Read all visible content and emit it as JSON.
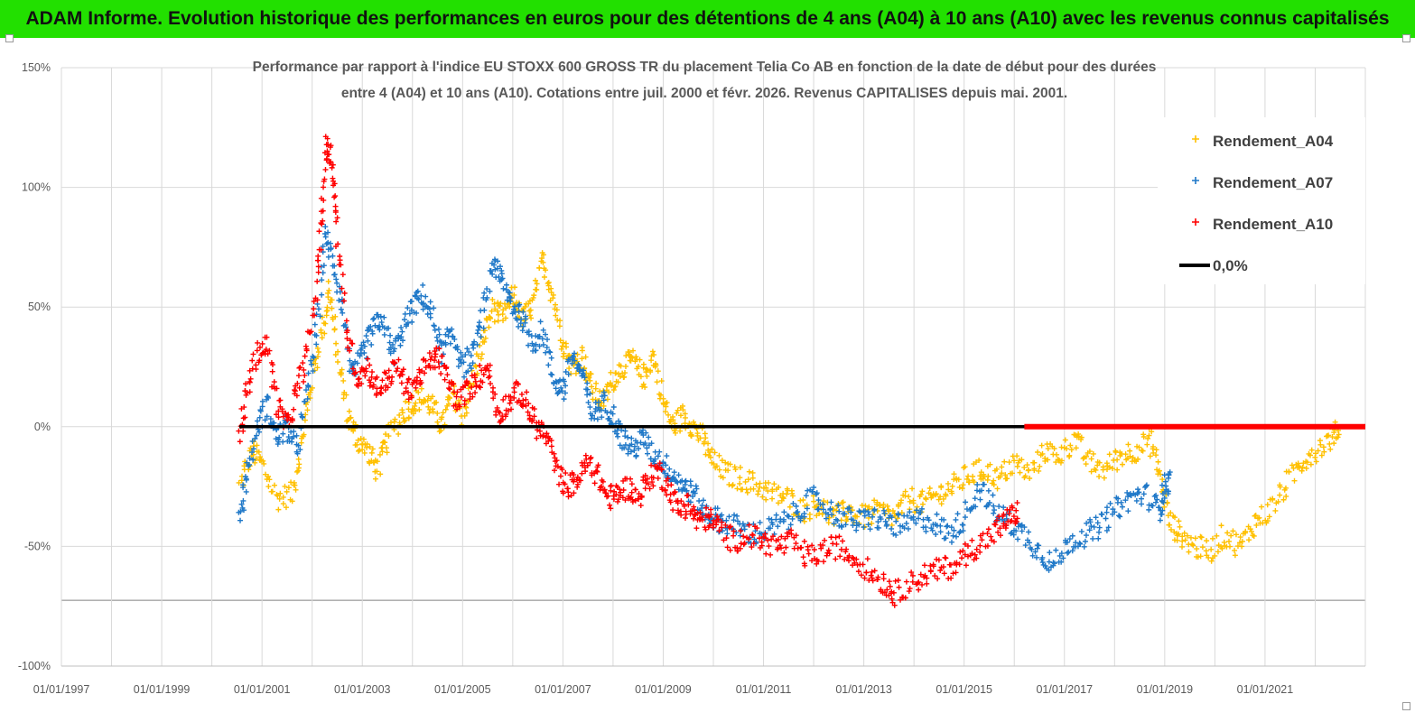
{
  "header": {
    "title": "ADAM Informe. Evolution historique des performances en euros pour des détentions de 4 ans (A04) à 10 ans (A10) avec les revenus connus capitalisés"
  },
  "chart_data": {
    "type": "scatter",
    "title_line1": "Performance par rapport à l'indice EU STOXX 600 GROSS TR  du placement Telia Co AB en fonction de la date de début pour des durées",
    "title_line2": "entre 4 (A04) et 10 ans (A10). Cotations entre juil. 2000 et févr. 2026. Revenus CAPITALISES depuis mai. 2001.",
    "x_tick_labels": [
      "01/01/1997",
      "01/01/1999",
      "01/01/2001",
      "01/01/2003",
      "01/01/2005",
      "01/01/2007",
      "01/01/2009",
      "01/01/2011",
      "01/01/2013",
      "01/01/2015",
      "01/01/2017",
      "01/01/2019",
      "01/01/2021"
    ],
    "y_tick_labels": [
      "150%",
      "100%",
      "50%",
      "0%",
      "-50%",
      "-100%"
    ],
    "y_ticks": [
      150,
      100,
      50,
      0,
      -50,
      -100
    ],
    "ylim": [
      -100,
      150
    ],
    "xlim": [
      1997.0,
      2023.0
    ],
    "grid": true,
    "legend_position": "top-right",
    "series": [
      {
        "name": "Rendement_A04",
        "color": "#ffc000",
        "marker": "plus",
        "points": [
          [
            2000.55,
            -25
          ],
          [
            2000.8,
            -10
          ],
          [
            2001.0,
            -15
          ],
          [
            2001.3,
            -30
          ],
          [
            2001.6,
            -28
          ],
          [
            2001.8,
            -5
          ],
          [
            2002.0,
            20
          ],
          [
            2002.2,
            40
          ],
          [
            2002.35,
            58
          ],
          [
            2002.5,
            30
          ],
          [
            2002.7,
            5
          ],
          [
            2002.9,
            -5
          ],
          [
            2003.1,
            -10
          ],
          [
            2003.3,
            -18
          ],
          [
            2003.5,
            -5
          ],
          [
            2003.8,
            5
          ],
          [
            2004.0,
            10
          ],
          [
            2004.2,
            12
          ],
          [
            2004.4,
            8
          ],
          [
            2004.6,
            0
          ],
          [
            2004.8,
            15
          ],
          [
            2005.0,
            5
          ],
          [
            2005.2,
            20
          ],
          [
            2005.4,
            35
          ],
          [
            2005.6,
            50
          ],
          [
            2005.8,
            45
          ],
          [
            2006.0,
            55
          ],
          [
            2006.2,
            45
          ],
          [
            2006.4,
            50
          ],
          [
            2006.6,
            70
          ],
          [
            2006.8,
            55
          ],
          [
            2007.0,
            35
          ],
          [
            2007.2,
            25
          ],
          [
            2007.4,
            30
          ],
          [
            2007.6,
            15
          ],
          [
            2007.8,
            10
          ],
          [
            2008.0,
            20
          ],
          [
            2008.2,
            25
          ],
          [
            2008.4,
            28
          ],
          [
            2008.6,
            20
          ],
          [
            2008.8,
            30
          ],
          [
            2009.0,
            10
          ],
          [
            2009.2,
            0
          ],
          [
            2009.4,
            5
          ],
          [
            2009.6,
            0
          ],
          [
            2009.8,
            -5
          ],
          [
            2010.0,
            -15
          ],
          [
            2010.3,
            -20
          ],
          [
            2010.6,
            -22
          ],
          [
            2010.9,
            -25
          ],
          [
            2011.2,
            -28
          ],
          [
            2011.5,
            -30
          ],
          [
            2011.8,
            -35
          ],
          [
            2012.1,
            -32
          ],
          [
            2012.4,
            -38
          ],
          [
            2012.7,
            -35
          ],
          [
            2013.0,
            -38
          ],
          [
            2013.3,
            -35
          ],
          [
            2013.6,
            -38
          ],
          [
            2013.9,
            -30
          ],
          [
            2014.2,
            -32
          ],
          [
            2014.5,
            -28
          ],
          [
            2014.8,
            -25
          ],
          [
            2015.1,
            -20
          ],
          [
            2015.4,
            -18
          ],
          [
            2015.7,
            -22
          ],
          [
            2016.0,
            -15
          ],
          [
            2016.3,
            -20
          ],
          [
            2016.6,
            -10
          ],
          [
            2016.9,
            -12
          ],
          [
            2017.2,
            -5
          ],
          [
            2017.5,
            -15
          ],
          [
            2017.8,
            -18
          ],
          [
            2018.1,
            -12
          ],
          [
            2018.4,
            -10
          ],
          [
            2018.7,
            -5
          ],
          [
            2018.9,
            -20
          ],
          [
            2019.1,
            -40
          ],
          [
            2019.3,
            -45
          ],
          [
            2019.6,
            -50
          ],
          [
            2019.9,
            -52
          ],
          [
            2020.2,
            -45
          ],
          [
            2020.5,
            -50
          ],
          [
            2020.8,
            -40
          ],
          [
            2021.1,
            -35
          ],
          [
            2021.4,
            -25
          ],
          [
            2021.7,
            -15
          ],
          [
            2022.0,
            -10
          ],
          [
            2022.3,
            -5
          ],
          [
            2022.5,
            0
          ]
        ]
      },
      {
        "name": "Rendement_A07",
        "color": "#1f78c8",
        "marker": "plus",
        "points": [
          [
            2000.55,
            -38
          ],
          [
            2000.7,
            -20
          ],
          [
            2000.9,
            0
          ],
          [
            2001.1,
            10
          ],
          [
            2001.3,
            -5
          ],
          [
            2001.5,
            0
          ],
          [
            2001.7,
            -10
          ],
          [
            2001.9,
            15
          ],
          [
            2002.1,
            40
          ],
          [
            2002.25,
            80
          ],
          [
            2002.4,
            70
          ],
          [
            2002.6,
            50
          ],
          [
            2002.8,
            20
          ],
          [
            2003.0,
            30
          ],
          [
            2003.2,
            40
          ],
          [
            2003.4,
            45
          ],
          [
            2003.6,
            30
          ],
          [
            2003.8,
            40
          ],
          [
            2004.0,
            50
          ],
          [
            2004.2,
            55
          ],
          [
            2004.4,
            45
          ],
          [
            2004.6,
            30
          ],
          [
            2004.8,
            40
          ],
          [
            2005.0,
            25
          ],
          [
            2005.2,
            30
          ],
          [
            2005.4,
            45
          ],
          [
            2005.6,
            70
          ],
          [
            2005.8,
            60
          ],
          [
            2006.0,
            50
          ],
          [
            2006.2,
            45
          ],
          [
            2006.4,
            35
          ],
          [
            2006.6,
            40
          ],
          [
            2006.8,
            20
          ],
          [
            2007.0,
            15
          ],
          [
            2007.2,
            30
          ],
          [
            2007.4,
            20
          ],
          [
            2007.6,
            5
          ],
          [
            2007.8,
            10
          ],
          [
            2008.0,
            5
          ],
          [
            2008.2,
            -5
          ],
          [
            2008.4,
            -10
          ],
          [
            2008.6,
            -5
          ],
          [
            2008.8,
            -12
          ],
          [
            2009.0,
            -15
          ],
          [
            2009.2,
            -20
          ],
          [
            2009.4,
            -25
          ],
          [
            2009.6,
            -28
          ],
          [
            2009.8,
            -35
          ],
          [
            2010.0,
            -38
          ],
          [
            2010.2,
            -40
          ],
          [
            2010.5,
            -42
          ],
          [
            2010.8,
            -45
          ],
          [
            2011.1,
            -43
          ],
          [
            2011.4,
            -40
          ],
          [
            2011.7,
            -35
          ],
          [
            2012.0,
            -30
          ],
          [
            2012.3,
            -35
          ],
          [
            2012.6,
            -38
          ],
          [
            2012.9,
            -40
          ],
          [
            2013.2,
            -38
          ],
          [
            2013.5,
            -40
          ],
          [
            2013.8,
            -42
          ],
          [
            2014.1,
            -38
          ],
          [
            2014.4,
            -40
          ],
          [
            2014.7,
            -45
          ],
          [
            2015.0,
            -38
          ],
          [
            2015.3,
            -25
          ],
          [
            2015.6,
            -35
          ],
          [
            2015.9,
            -40
          ],
          [
            2016.2,
            -45
          ],
          [
            2016.5,
            -52
          ],
          [
            2016.8,
            -58
          ],
          [
            2017.1,
            -48
          ],
          [
            2017.4,
            -45
          ],
          [
            2017.7,
            -42
          ],
          [
            2018.0,
            -35
          ],
          [
            2018.3,
            -30
          ],
          [
            2018.6,
            -28
          ],
          [
            2018.9,
            -35
          ],
          [
            2019.0,
            -25
          ],
          [
            2019.1,
            -22
          ]
        ]
      },
      {
        "name": "Rendement_A10",
        "color": "#ff0000",
        "marker": "plus",
        "points": [
          [
            2000.55,
            -5
          ],
          [
            2000.7,
            15
          ],
          [
            2000.9,
            30
          ],
          [
            2001.1,
            35
          ],
          [
            2001.3,
            10
          ],
          [
            2001.5,
            0
          ],
          [
            2001.7,
            15
          ],
          [
            2001.9,
            30
          ],
          [
            2002.1,
            60
          ],
          [
            2002.2,
            90
          ],
          [
            2002.3,
            120
          ],
          [
            2002.4,
            110
          ],
          [
            2002.5,
            80
          ],
          [
            2002.7,
            40
          ],
          [
            2002.9,
            20
          ],
          [
            2003.1,
            25
          ],
          [
            2003.3,
            15
          ],
          [
            2003.5,
            20
          ],
          [
            2003.7,
            25
          ],
          [
            2003.9,
            15
          ],
          [
            2004.1,
            20
          ],
          [
            2004.3,
            25
          ],
          [
            2004.5,
            30
          ],
          [
            2004.7,
            20
          ],
          [
            2004.9,
            10
          ],
          [
            2005.1,
            15
          ],
          [
            2005.3,
            20
          ],
          [
            2005.5,
            25
          ],
          [
            2005.7,
            5
          ],
          [
            2005.9,
            10
          ],
          [
            2006.1,
            15
          ],
          [
            2006.3,
            8
          ],
          [
            2006.5,
            0
          ],
          [
            2006.7,
            -5
          ],
          [
            2006.9,
            -20
          ],
          [
            2007.1,
            -25
          ],
          [
            2007.3,
            -22
          ],
          [
            2007.5,
            -15
          ],
          [
            2007.7,
            -20
          ],
          [
            2007.9,
            -30
          ],
          [
            2008.1,
            -28
          ],
          [
            2008.3,
            -25
          ],
          [
            2008.5,
            -30
          ],
          [
            2008.7,
            -22
          ],
          [
            2008.9,
            -18
          ],
          [
            2009.1,
            -25
          ],
          [
            2009.3,
            -35
          ],
          [
            2009.5,
            -32
          ],
          [
            2009.7,
            -40
          ],
          [
            2009.9,
            -38
          ],
          [
            2010.1,
            -42
          ],
          [
            2010.4,
            -48
          ],
          [
            2010.7,
            -45
          ],
          [
            2011.0,
            -48
          ],
          [
            2011.3,
            -50
          ],
          [
            2011.6,
            -48
          ],
          [
            2011.9,
            -55
          ],
          [
            2012.2,
            -52
          ],
          [
            2012.5,
            -50
          ],
          [
            2012.8,
            -55
          ],
          [
            2013.1,
            -60
          ],
          [
            2013.4,
            -65
          ],
          [
            2013.6,
            -70
          ],
          [
            2013.9,
            -66
          ],
          [
            2014.2,
            -62
          ],
          [
            2014.5,
            -60
          ],
          [
            2014.8,
            -58
          ],
          [
            2015.1,
            -52
          ],
          [
            2015.4,
            -48
          ],
          [
            2015.7,
            -42
          ],
          [
            2015.9,
            -38
          ],
          [
            2016.1,
            -35
          ]
        ]
      },
      {
        "name": "0,0%",
        "color": "#000000",
        "marker": "line",
        "points": [
          [
            2000.55,
            0
          ],
          [
            2016.2,
            0
          ]
        ]
      }
    ],
    "zero_flat_series": {
      "name": "Rendement_A10",
      "from": 2016.2,
      "to": 2023.0,
      "value": 0
    }
  }
}
